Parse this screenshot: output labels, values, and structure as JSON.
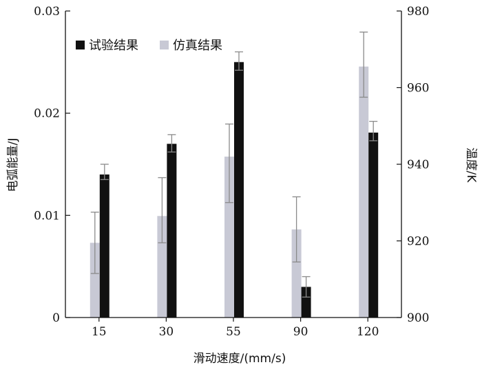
{
  "chart_data": {
    "type": "bar",
    "categories": [
      "15",
      "30",
      "55",
      "90",
      "120"
    ],
    "series": [
      {
        "name": "试验结果",
        "axis": "left",
        "color": "#111111",
        "values": [
          0.014,
          0.017,
          0.025,
          0.003,
          0.0181
        ],
        "error_low": [
          0.0135,
          0.0162,
          0.0242,
          0.002,
          0.0173
        ],
        "error_high": [
          0.015,
          0.0179,
          0.026,
          0.004,
          0.0192
        ]
      },
      {
        "name": "仿真结果",
        "axis": "right",
        "color": "#c8c9d5",
        "values": [
          919.5,
          926.5,
          942,
          923,
          965.5
        ],
        "error_low": [
          911.5,
          919.5,
          930,
          914.5,
          957.5
        ],
        "error_high": [
          927.5,
          936.5,
          950.5,
          931.5,
          974.5
        ]
      }
    ],
    "xlabel": "滑动速度/(mm/s)",
    "ylabel": "电弧能量/J",
    "ylabel_right": "温度/K",
    "ylim": [
      0,
      0.03
    ],
    "yticks": [
      "0",
      "0.01",
      "0.02",
      "0.03"
    ],
    "ylim_right": [
      900,
      980
    ],
    "yticks_right": [
      "900",
      "920",
      "940",
      "960",
      "980"
    ],
    "legend_position": "top-left",
    "grid": false
  }
}
